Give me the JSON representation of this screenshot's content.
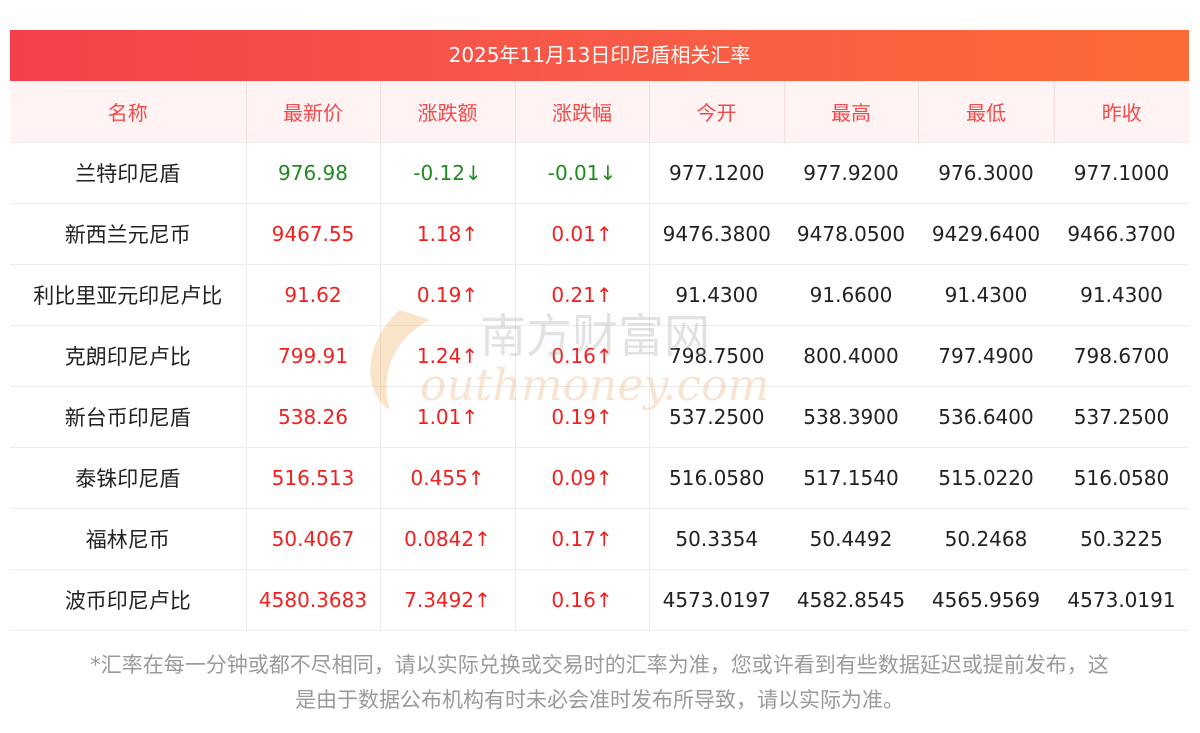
{
  "title": "2025年11月13日印尼盾相关汇率",
  "headers": [
    "名称",
    "最新价",
    "涨跌额",
    "涨跌幅",
    "今开",
    "最高",
    "最低",
    "昨收"
  ],
  "rows": [
    {
      "name": "兰特印尼盾",
      "latest": "976.98",
      "change": "-0.12↓",
      "change_pct": "-0.01↓",
      "open": "977.1200",
      "high": "977.9200",
      "low": "976.3000",
      "prev_close": "977.1000",
      "direction": "down"
    },
    {
      "name": "新西兰元尼币",
      "latest": "9467.55",
      "change": "1.18↑",
      "change_pct": "0.01↑",
      "open": "9476.3800",
      "high": "9478.0500",
      "low": "9429.6400",
      "prev_close": "9466.3700",
      "direction": "up"
    },
    {
      "name": "利比里亚元印尼卢比",
      "latest": "91.62",
      "change": "0.19↑",
      "change_pct": "0.21↑",
      "open": "91.4300",
      "high": "91.6600",
      "low": "91.4300",
      "prev_close": "91.4300",
      "direction": "up"
    },
    {
      "name": "克朗印尼卢比",
      "latest": "799.91",
      "change": "1.24↑",
      "change_pct": "0.16↑",
      "open": "798.7500",
      "high": "800.4000",
      "low": "797.4900",
      "prev_close": "798.6700",
      "direction": "up"
    },
    {
      "name": "新台币印尼盾",
      "latest": "538.26",
      "change": "1.01↑",
      "change_pct": "0.19↑",
      "open": "537.2500",
      "high": "538.3900",
      "low": "536.6400",
      "prev_close": "537.2500",
      "direction": "up"
    },
    {
      "name": "泰铢印尼盾",
      "latest": "516.513",
      "change": "0.455↑",
      "change_pct": "0.09↑",
      "open": "516.0580",
      "high": "517.1540",
      "low": "515.0220",
      "prev_close": "516.0580",
      "direction": "up"
    },
    {
      "name": "福林尼币",
      "latest": "50.4067",
      "change": "0.0842↑",
      "change_pct": "0.17↑",
      "open": "50.3354",
      "high": "50.4492",
      "low": "50.2468",
      "prev_close": "50.3225",
      "direction": "up"
    },
    {
      "name": "波币印尼卢比",
      "latest": "4580.3683",
      "change": "7.3492↑",
      "change_pct": "0.16↑",
      "open": "4573.0197",
      "high": "4582.8545",
      "low": "4565.9569",
      "prev_close": "4573.0191",
      "direction": "up"
    }
  ],
  "watermark": {
    "cn": "南方财富网",
    "en": "outhmoney.com"
  },
  "disclaimer_line1": "*汇率在每一分钟或都不尽相同，请以实际兑换或交易时的汇率为准，您或许看到有些数据延迟或提前发布，这",
  "disclaimer_line2": "是由于数据公布机构有时未必会准时发布所导致，请以实际为准。",
  "colors": {
    "header_red": "#f24a4b",
    "up": "#f21f1f",
    "down": "#1f8a20",
    "title_gradient_start": "#f5404b",
    "title_gradient_end": "#fa6b36"
  }
}
